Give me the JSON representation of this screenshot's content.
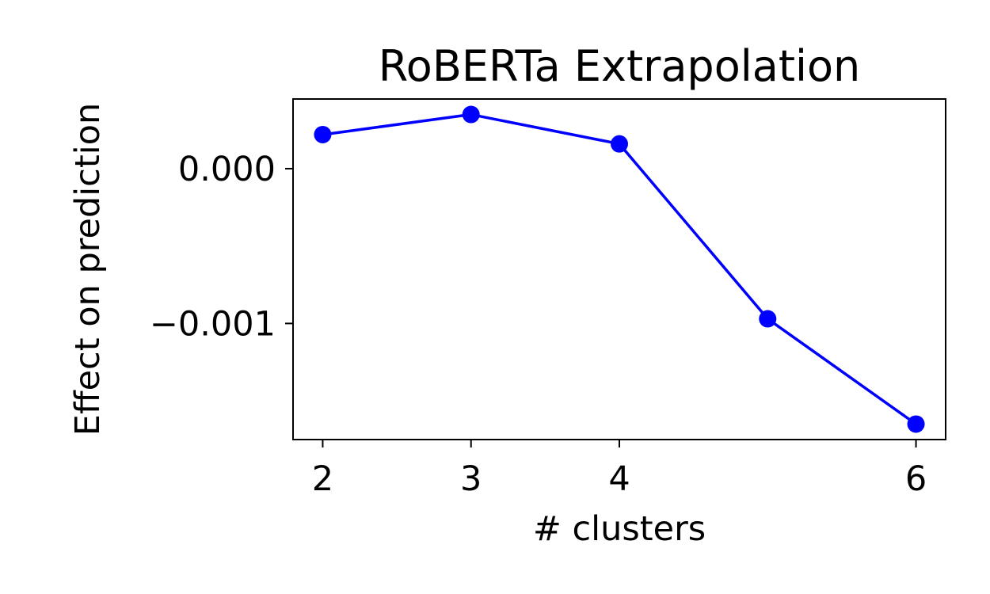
{
  "chart_data": {
    "type": "line",
    "title": "RoBERTa Extrapolation",
    "xlabel": "# clusters",
    "ylabel": "Effect on prediction",
    "x": [
      2,
      3,
      4,
      5,
      6
    ],
    "xticks": [
      2,
      3,
      4,
      6
    ],
    "xtick_labels": [
      "2",
      "3",
      "4",
      "6"
    ],
    "yticks": [
      0.0,
      -0.001
    ],
    "ytick_labels": [
      "0.000",
      "−0.001"
    ],
    "xlim": [
      1.8,
      6.2
    ],
    "ylim": [
      -0.00175,
      0.00045
    ],
    "series": [
      {
        "values": [
          0.00022,
          0.00035,
          0.00016,
          -0.00097,
          -0.00165
        ],
        "color": "#0000ff",
        "marker": "circle"
      }
    ],
    "grid": false,
    "legend": false
  }
}
